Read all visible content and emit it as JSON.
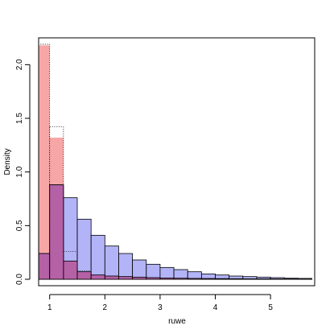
{
  "chart_data": {
    "type": "bar",
    "title": "",
    "xlabel": "ruwe",
    "ylabel": "Density",
    "xlim": [
      0.8,
      5.8
    ],
    "ylim": [
      -0.06,
      2.25
    ],
    "bin_width": 0.25,
    "x_ticks": [
      1,
      2,
      3,
      4,
      5
    ],
    "x_tick_labels": [
      "1",
      "2",
      "3",
      "4",
      "5"
    ],
    "y_ticks": [
      0.0,
      0.5,
      1.0,
      1.5,
      2.0
    ],
    "y_tick_labels": [
      "0.0",
      "0.5",
      "1.0",
      "1.5",
      "2.0"
    ],
    "legend": "none",
    "grid": false,
    "series": [
      {
        "color": "#f7a6a6",
        "style": "filled, no border",
        "bin_starts": [
          0.75,
          1.0,
          1.25,
          1.5,
          1.75,
          2.0,
          2.25,
          2.5,
          2.75,
          3.0,
          3.25,
          3.5,
          3.75,
          4.0,
          4.25,
          4.5,
          4.75,
          5.0,
          5.25,
          5.5
        ],
        "values": [
          2.18,
          1.32,
          0.17,
          0.07,
          0.04,
          0.03,
          0.025,
          0.02,
          0.015,
          0.012,
          0.01,
          0.008,
          0.007,
          0.006,
          0.005,
          0.004,
          0.004,
          0.003,
          0.003,
          0.002
        ]
      },
      {
        "color": "#a6a6f7",
        "style": "filled, solid black border",
        "bin_starts": [
          0.75,
          1.0,
          1.25,
          1.5,
          1.75,
          2.0,
          2.25,
          2.5,
          2.75,
          3.0,
          3.25,
          3.5,
          3.75,
          4.0,
          4.25,
          4.5,
          4.75,
          5.0,
          5.25,
          5.5
        ],
        "values": [
          0.24,
          0.88,
          0.76,
          0.56,
          0.41,
          0.31,
          0.24,
          0.18,
          0.14,
          0.11,
          0.09,
          0.07,
          0.05,
          0.04,
          0.03,
          0.025,
          0.02,
          0.015,
          0.01,
          0.008
        ]
      },
      {
        "color": "#000000",
        "style": "dotted outline",
        "bin_starts": [
          0.75,
          1.0,
          1.25,
          1.5,
          1.75,
          2.0,
          2.25,
          2.5,
          2.75,
          3.0,
          3.25,
          3.5,
          3.75,
          4.0,
          4.25,
          4.5,
          4.75,
          5.0,
          5.25,
          5.5
        ],
        "values": [
          2.19,
          1.42,
          0.26,
          0.08,
          0.04,
          0.03,
          0.025,
          0.02,
          0.015,
          0.012,
          0.01,
          0.008,
          0.007,
          0.006,
          0.005,
          0.004,
          0.004,
          0.003,
          0.003,
          0.002
        ]
      }
    ]
  }
}
